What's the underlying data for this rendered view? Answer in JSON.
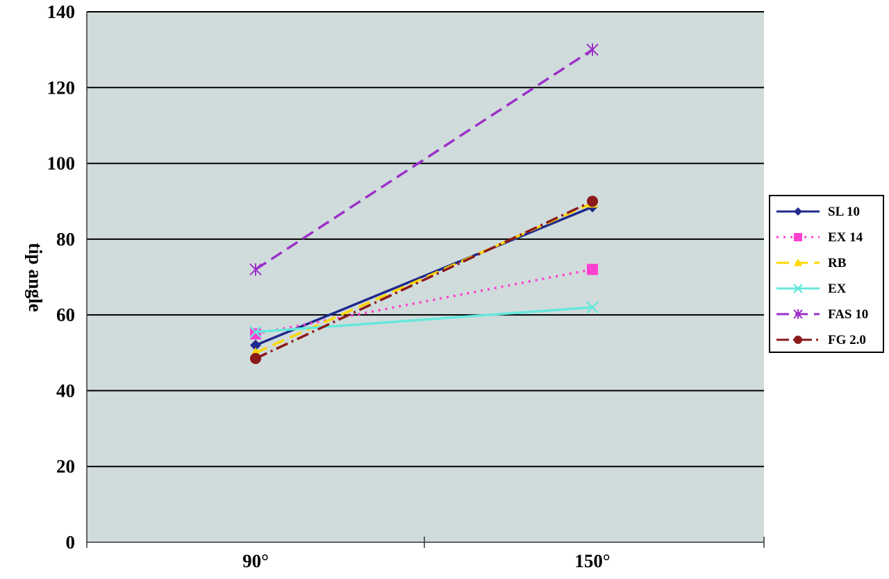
{
  "chart_data": {
    "type": "line",
    "categories": [
      "90°",
      "150°"
    ],
    "ylabel": "tip angle",
    "xlabel": "",
    "ylim": [
      0,
      140
    ],
    "yticks": [
      0,
      20,
      40,
      60,
      80,
      100,
      120,
      140
    ],
    "grid": true,
    "legend": "right",
    "series": [
      {
        "name": "SL 10",
        "values": [
          52,
          88.5
        ],
        "color": "#1f2a8c",
        "dash": "solid",
        "marker": "diamond"
      },
      {
        "name": "EX 14",
        "values": [
          55,
          72
        ],
        "color": "#ff3fd0",
        "dash": "dotted",
        "marker": "square"
      },
      {
        "name": "RB",
        "values": [
          50,
          89.5
        ],
        "color": "#ffd700",
        "dash": "dashed",
        "marker": "triangle"
      },
      {
        "name": "EX",
        "values": [
          55.5,
          62
        ],
        "color": "#66e8dc",
        "dash": "solid",
        "marker": "x"
      },
      {
        "name": "FAS 10",
        "values": [
          72,
          130
        ],
        "color": "#9b30c8",
        "dash": "dashed",
        "marker": "star"
      },
      {
        "name": "FG 2.0",
        "values": [
          48.5,
          90
        ],
        "color": "#8b1a1a",
        "dash": "dashdot",
        "marker": "circle"
      }
    ]
  }
}
